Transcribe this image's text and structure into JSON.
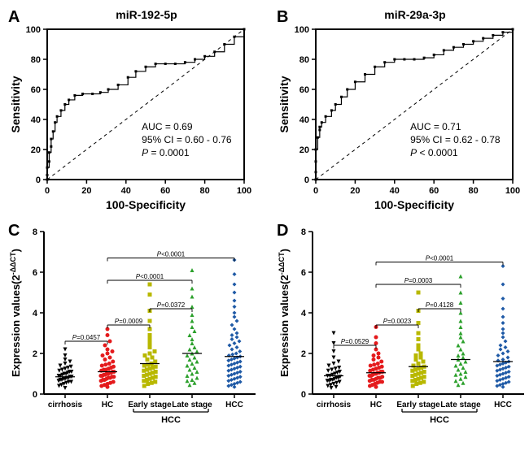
{
  "panels": {
    "A": {
      "label": "A",
      "title": "miR-192-5p",
      "type": "roc",
      "xlabel": "100-Specificity",
      "ylabel": "Sensitivity",
      "xlim": [
        0,
        100
      ],
      "ylim": [
        0,
        100
      ],
      "xtick_step": 20,
      "ytick_step": 20,
      "auc_text": "AUC = 0.69",
      "ci_text": "95% CI = 0.60 - 0.76",
      "p_text_prefix": "P",
      "p_text_rest": " = 0.0001",
      "roc_points": [
        [
          0,
          0
        ],
        [
          0,
          3
        ],
        [
          0,
          8
        ],
        [
          1,
          12
        ],
        [
          1,
          18
        ],
        [
          2,
          22
        ],
        [
          2,
          27
        ],
        [
          3,
          32
        ],
        [
          4,
          38
        ],
        [
          5,
          42
        ],
        [
          7,
          46
        ],
        [
          9,
          50
        ],
        [
          11,
          53
        ],
        [
          14,
          56
        ],
        [
          18,
          57
        ],
        [
          23,
          57
        ],
        [
          27,
          58
        ],
        [
          31,
          60
        ],
        [
          36,
          63
        ],
        [
          41,
          68
        ],
        [
          45,
          72
        ],
        [
          50,
          75
        ],
        [
          55,
          77
        ],
        [
          60,
          77
        ],
        [
          65,
          77
        ],
        [
          70,
          78
        ],
        [
          75,
          80
        ],
        [
          80,
          82
        ],
        [
          85,
          85
        ],
        [
          90,
          90
        ],
        [
          95,
          95
        ],
        [
          100,
          100
        ]
      ],
      "line_color": "#000000",
      "diag_dash": "4,4",
      "background_color": "#ffffff",
      "label_fontsize": 14,
      "tick_fontsize": 11,
      "annot_fontsize": 12
    },
    "B": {
      "label": "B",
      "title": "miR-29a-3p",
      "type": "roc",
      "xlabel": "100-Specificity",
      "ylabel": "Sensitivity",
      "xlim": [
        0,
        100
      ],
      "ylim": [
        0,
        100
      ],
      "xtick_step": 20,
      "ytick_step": 20,
      "auc_text": "AUC = 0.71",
      "ci_text": "95% CI = 0.62 - 0.78",
      "p_text_prefix": "P",
      "p_text_rest": " < 0.0001",
      "roc_points": [
        [
          0,
          0
        ],
        [
          0,
          5
        ],
        [
          0,
          12
        ],
        [
          0,
          20
        ],
        [
          1,
          28
        ],
        [
          2,
          33
        ],
        [
          2,
          35
        ],
        [
          3,
          38
        ],
        [
          5,
          42
        ],
        [
          8,
          46
        ],
        [
          10,
          50
        ],
        [
          13,
          55
        ],
        [
          16,
          60
        ],
        [
          20,
          65
        ],
        [
          25,
          70
        ],
        [
          30,
          75
        ],
        [
          35,
          78
        ],
        [
          40,
          80
        ],
        [
          45,
          80
        ],
        [
          50,
          80
        ],
        [
          55,
          81
        ],
        [
          60,
          83
        ],
        [
          65,
          86
        ],
        [
          70,
          88
        ],
        [
          75,
          90
        ],
        [
          80,
          92
        ],
        [
          85,
          94
        ],
        [
          90,
          96
        ],
        [
          95,
          98
        ],
        [
          100,
          100
        ]
      ],
      "line_color": "#000000",
      "diag_dash": "4,4",
      "background_color": "#ffffff",
      "label_fontsize": 14,
      "tick_fontsize": 11,
      "annot_fontsize": 12
    },
    "C": {
      "label": "C",
      "type": "scatter",
      "xlabel_groups": [
        "cirrhosis",
        "HC",
        "Early stage",
        "Late stage",
        "HCC"
      ],
      "hcc_bracket_label": "HCC",
      "ylabel_prefix": "Expression values(2",
      "ylabel_sup": "-ΔΔCT",
      "ylabel_suffix": ")",
      "ylim": [
        0,
        8
      ],
      "ytick_step": 2,
      "groups": [
        {
          "name": "cirrhosis",
          "color": "#000000",
          "marker": "triangle-down",
          "mean": 0.85,
          "values": [
            0.3,
            0.4,
            0.45,
            0.5,
            0.55,
            0.6,
            0.6,
            0.65,
            0.7,
            0.7,
            0.75,
            0.75,
            0.8,
            0.8,
            0.85,
            0.85,
            0.9,
            0.9,
            0.95,
            1.0,
            1.0,
            1.05,
            1.1,
            1.1,
            1.15,
            1.2,
            1.25,
            1.3,
            1.35,
            1.4,
            1.5,
            1.6,
            1.7,
            1.9,
            2.2
          ]
        },
        {
          "name": "HC",
          "color": "#e41a1c",
          "marker": "circle",
          "mean": 1.1,
          "values": [
            0.35,
            0.4,
            0.45,
            0.5,
            0.55,
            0.6,
            0.65,
            0.7,
            0.7,
            0.75,
            0.8,
            0.8,
            0.85,
            0.85,
            0.9,
            0.9,
            0.95,
            0.95,
            1.0,
            1.0,
            1.05,
            1.05,
            1.1,
            1.1,
            1.15,
            1.2,
            1.2,
            1.25,
            1.3,
            1.35,
            1.4,
            1.45,
            1.5,
            1.6,
            1.7,
            1.8,
            1.9,
            2.0,
            2.1,
            2.2,
            2.4,
            2.6,
            2.9,
            3.2
          ]
        },
        {
          "name": "Early stage",
          "color": "#b8b800",
          "marker": "square",
          "mean": 1.5,
          "values": [
            0.4,
            0.5,
            0.55,
            0.6,
            0.65,
            0.7,
            0.75,
            0.8,
            0.85,
            0.9,
            0.95,
            1.0,
            1.05,
            1.1,
            1.15,
            1.2,
            1.25,
            1.3,
            1.35,
            1.4,
            1.45,
            1.5,
            1.6,
            1.7,
            1.8,
            1.9,
            2.0,
            2.1,
            2.3,
            2.5,
            2.7,
            2.9,
            3.2,
            3.6,
            4.1,
            4.9,
            5.4
          ]
        },
        {
          "name": "Late stage",
          "color": "#2ca02c",
          "marker": "triangle-up",
          "mean": 2.0,
          "values": [
            0.45,
            0.55,
            0.65,
            0.7,
            0.8,
            0.9,
            1.0,
            1.1,
            1.2,
            1.3,
            1.4,
            1.5,
            1.6,
            1.7,
            1.8,
            1.9,
            2.0,
            2.1,
            2.2,
            2.3,
            2.5,
            2.7,
            2.9,
            3.1,
            3.3,
            3.6,
            3.9,
            4.3,
            4.8,
            5.2,
            6.1
          ]
        },
        {
          "name": "HCC",
          "color": "#1f5aa6",
          "marker": "diamond",
          "mean": 1.85,
          "values": [
            0.35,
            0.4,
            0.45,
            0.5,
            0.55,
            0.6,
            0.65,
            0.7,
            0.75,
            0.8,
            0.85,
            0.9,
            0.95,
            1.0,
            1.05,
            1.1,
            1.15,
            1.2,
            1.25,
            1.3,
            1.35,
            1.4,
            1.45,
            1.5,
            1.55,
            1.6,
            1.65,
            1.7,
            1.75,
            1.8,
            1.85,
            1.9,
            1.95,
            2.0,
            2.1,
            2.2,
            2.3,
            2.4,
            2.5,
            2.6,
            2.7,
            2.8,
            2.9,
            3.0,
            3.2,
            3.4,
            3.6,
            3.8,
            4.0,
            4.3,
            4.6,
            5.0,
            5.4,
            5.9,
            6.6
          ]
        }
      ],
      "sig_bars": [
        {
          "from": 0,
          "to": 1,
          "y": 2.6,
          "label": "P=0.0457"
        },
        {
          "from": 1,
          "to": 2,
          "y": 3.4,
          "label": "P=0.0009"
        },
        {
          "from": 2,
          "to": 3,
          "y": 4.2,
          "label": "P=0.0372"
        },
        {
          "from": 1,
          "to": 3,
          "y": 5.6,
          "label": "P<0.0001"
        },
        {
          "from": 1,
          "to": 4,
          "y": 6.7,
          "label": "P<0.0001"
        }
      ],
      "axis_color": "#000000",
      "tick_fontsize": 11,
      "label_fontsize": 13,
      "sig_fontsize": 8
    },
    "D": {
      "label": "D",
      "type": "scatter",
      "xlabel_groups": [
        "cirrhosis",
        "HC",
        "Early stage",
        "Late stage",
        "HCC"
      ],
      "hcc_bracket_label": "HCC",
      "ylabel_prefix": "Expression values(2",
      "ylabel_sup": "-ΔΔCT",
      "ylabel_suffix": ")",
      "ylim": [
        0,
        8
      ],
      "ytick_step": 2,
      "groups": [
        {
          "name": "cirrhosis",
          "color": "#000000",
          "marker": "triangle-down",
          "mean": 0.9,
          "values": [
            0.3,
            0.35,
            0.4,
            0.45,
            0.5,
            0.55,
            0.6,
            0.65,
            0.65,
            0.7,
            0.7,
            0.75,
            0.8,
            0.8,
            0.85,
            0.9,
            0.9,
            0.95,
            1.0,
            1.05,
            1.1,
            1.15,
            1.2,
            1.25,
            1.3,
            1.4,
            1.5,
            1.6,
            1.8,
            2.1,
            2.5,
            3.0
          ]
        },
        {
          "name": "HC",
          "color": "#e41a1c",
          "marker": "circle",
          "mean": 1.05,
          "values": [
            0.35,
            0.4,
            0.45,
            0.5,
            0.55,
            0.6,
            0.6,
            0.65,
            0.7,
            0.7,
            0.75,
            0.8,
            0.8,
            0.85,
            0.9,
            0.9,
            0.95,
            1.0,
            1.0,
            1.05,
            1.05,
            1.1,
            1.1,
            1.15,
            1.2,
            1.25,
            1.3,
            1.35,
            1.4,
            1.45,
            1.5,
            1.6,
            1.7,
            1.8,
            1.9,
            2.0,
            2.2,
            2.5,
            2.8,
            3.3
          ]
        },
        {
          "name": "Early stage",
          "color": "#b8b800",
          "marker": "square",
          "mean": 1.35,
          "values": [
            0.4,
            0.5,
            0.55,
            0.6,
            0.65,
            0.7,
            0.75,
            0.8,
            0.85,
            0.9,
            0.95,
            1.0,
            1.05,
            1.1,
            1.15,
            1.2,
            1.25,
            1.3,
            1.35,
            1.4,
            1.5,
            1.6,
            1.7,
            1.8,
            1.9,
            2.0,
            2.2,
            2.4,
            2.7,
            3.0,
            3.5,
            4.1,
            5.0
          ]
        },
        {
          "name": "Late stage",
          "color": "#2ca02c",
          "marker": "triangle-up",
          "mean": 1.7,
          "values": [
            0.45,
            0.55,
            0.65,
            0.75,
            0.85,
            0.95,
            1.0,
            1.1,
            1.2,
            1.3,
            1.4,
            1.5,
            1.6,
            1.7,
            1.8,
            1.9,
            2.0,
            2.2,
            2.4,
            2.6,
            2.8,
            3.0,
            3.3,
            3.6,
            4.0,
            4.5,
            5.0,
            5.8
          ]
        },
        {
          "name": "HCC",
          "color": "#1f5aa6",
          "marker": "diamond",
          "mean": 1.6,
          "values": [
            0.35,
            0.4,
            0.45,
            0.5,
            0.55,
            0.6,
            0.65,
            0.7,
            0.75,
            0.8,
            0.85,
            0.9,
            0.95,
            1.0,
            1.05,
            1.1,
            1.15,
            1.2,
            1.25,
            1.3,
            1.35,
            1.4,
            1.45,
            1.5,
            1.55,
            1.6,
            1.65,
            1.7,
            1.8,
            1.9,
            2.0,
            2.1,
            2.2,
            2.3,
            2.4,
            2.6,
            2.8,
            3.0,
            3.2,
            3.5,
            3.8,
            4.2,
            4.7,
            5.4,
            6.3
          ]
        }
      ],
      "sig_bars": [
        {
          "from": 0,
          "to": 1,
          "y": 2.4,
          "label": "P=0.0529"
        },
        {
          "from": 1,
          "to": 2,
          "y": 3.4,
          "label": "P=0.0023"
        },
        {
          "from": 2,
          "to": 3,
          "y": 4.2,
          "label": "P=0.4128"
        },
        {
          "from": 1,
          "to": 3,
          "y": 5.4,
          "label": "P=0.0003"
        },
        {
          "from": 1,
          "to": 4,
          "y": 6.5,
          "label": "P<0.0001"
        }
      ],
      "axis_color": "#000000",
      "tick_fontsize": 11,
      "label_fontsize": 13,
      "sig_fontsize": 8
    }
  }
}
